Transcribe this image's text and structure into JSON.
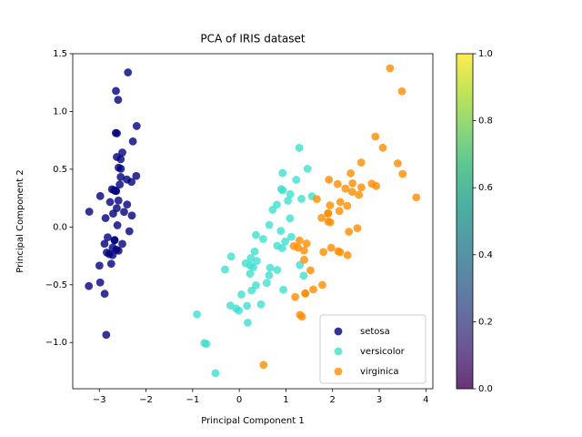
{
  "chart_data": {
    "type": "scatter",
    "title": "PCA of IRIS dataset",
    "x_label": "Principal Component 1",
    "y_label": "Principal Component 2",
    "xlim": [
      -3.57,
      4.15
    ],
    "ylim": [
      -1.4,
      1.5
    ],
    "xticks": [
      {
        "value": -3,
        "label": "−3"
      },
      {
        "value": -2,
        "label": "−2"
      },
      {
        "value": -1,
        "label": "−1"
      },
      0,
      1,
      2,
      3,
      4
    ],
    "yticks": [
      {
        "value": -1.0,
        "label": "−1.0"
      },
      {
        "value": -0.5,
        "label": "−0.5"
      },
      {
        "value": 0.0,
        "label": "0.0"
      },
      {
        "value": 0.5,
        "label": "0.5"
      },
      {
        "value": 1.0,
        "label": "1.0"
      },
      {
        "value": 1.5,
        "label": "1.5"
      }
    ],
    "legend": "lower right",
    "series": [
      {
        "name": "setosa",
        "color": "#000080",
        "x": [
          -2.684,
          -2.714,
          -2.889,
          -2.745,
          -2.729,
          -2.281,
          -2.821,
          -2.626,
          -2.886,
          -2.673,
          -2.507,
          -2.613,
          -2.787,
          -3.225,
          -2.644,
          -2.386,
          -2.623,
          -2.648,
          -2.199,
          -2.587,
          -2.31,
          -2.543,
          -3.216,
          -2.303,
          -2.356,
          -2.507,
          -2.469,
          -2.562,
          -2.64,
          -2.633,
          -2.587,
          -2.41,
          -2.648,
          -2.597,
          -2.673,
          -2.867,
          -2.625,
          -2.982,
          -2.59,
          -2.77,
          -2.852,
          -2.998,
          -2.405,
          -2.209,
          -2.715,
          -2.538,
          -2.84,
          -2.542,
          -2.704,
          -2.981
        ],
        "values": [
          0.319,
          -0.177,
          -0.145,
          -0.318,
          0.327,
          0.741,
          -0.089,
          0.163,
          -0.578,
          -0.114,
          0.645,
          0.015,
          -0.235,
          -0.511,
          1.178,
          1.338,
          0.811,
          0.312,
          0.874,
          0.514,
          0.391,
          0.433,
          0.133,
          0.099,
          -0.037,
          -0.146,
          0.131,
          0.368,
          0.312,
          -0.196,
          -0.205,
          0.411,
          0.814,
          1.101,
          -0.114,
          0.077,
          0.606,
          -0.48,
          0.229,
          0.216,
          -0.933,
          -0.334,
          0.195,
          0.442,
          -0.243,
          0.504,
          -0.221,
          0.587,
          0.116,
          0.268
        ]
      },
      {
        "name": "versicolor",
        "color": "#40e0d0",
        "x": [
          1.285,
          0.932,
          1.464,
          0.181,
          1.087,
          0.64,
          1.095,
          -0.749,
          1.043,
          -0.01,
          -0.511,
          0.511,
          0.263,
          0.984,
          -0.174,
          0.928,
          0.66,
          0.236,
          0.944,
          0.045,
          1.116,
          0.358,
          1.298,
          0.921,
          0.715,
          0.9,
          1.333,
          1.557,
          0.813,
          -0.306,
          -0.068,
          -0.19,
          0.136,
          1.38,
          0.588,
          0.807,
          1.22,
          0.815,
          0.246,
          0.166,
          0.464,
          0.89,
          0.23,
          -0.705,
          0.357,
          0.332,
          0.376,
          0.642,
          -0.907,
          0.299
        ],
        "values": [
          0.685,
          0.318,
          0.504,
          -0.828,
          0.075,
          -0.418,
          0.284,
          -1.004,
          0.228,
          -0.723,
          -1.265,
          -0.104,
          -0.55,
          -0.125,
          -0.255,
          0.467,
          -0.353,
          -0.333,
          -0.543,
          -0.584,
          -0.085,
          -0.069,
          -0.328,
          -0.183,
          0.149,
          0.329,
          0.244,
          0.267,
          -0.163,
          -0.368,
          -0.706,
          -0.68,
          -0.314,
          -0.421,
          -0.484,
          0.194,
          0.408,
          -0.372,
          -0.269,
          -0.682,
          -0.67,
          -0.034,
          -0.404,
          -1.012,
          -0.505,
          -0.212,
          -0.293,
          0.018,
          -0.756,
          -0.349
        ]
      },
      {
        "name": "virginica",
        "color": "#ff8c00",
        "x": [
          2.531,
          1.415,
          2.617,
          1.971,
          2.35,
          3.397,
          0.521,
          2.933,
          2.321,
          2.917,
          1.662,
          1.804,
          2.166,
          1.345,
          1.586,
          1.905,
          1.95,
          3.487,
          3.795,
          1.3,
          2.428,
          1.199,
          3.5,
          1.388,
          2.276,
          2.614,
          1.258,
          1.291,
          2.123,
          2.388,
          2.841,
          3.231,
          2.159,
          1.444,
          1.78,
          3.077,
          2.145,
          1.905,
          1.169,
          2.108,
          2.314,
          1.922,
          1.415,
          2.563,
          2.419,
          1.944,
          1.527,
          1.764,
          1.902,
          1.391
        ],
        "values": [
          -0.01,
          -0.575,
          0.343,
          -0.18,
          -0.041,
          0.551,
          -1.193,
          0.355,
          -0.244,
          0.783,
          0.242,
          -0.216,
          0.216,
          -0.776,
          -0.54,
          0.119,
          0.041,
          1.175,
          0.257,
          -0.761,
          0.378,
          -0.606,
          0.46,
          -0.204,
          0.333,
          0.558,
          -0.179,
          -0.117,
          -0.21,
          0.465,
          0.375,
          1.374,
          -0.218,
          -0.143,
          -0.501,
          0.686,
          0.139,
          0.048,
          -0.165,
          0.372,
          0.183,
          0.409,
          -0.575,
          0.278,
          0.305,
          0.188,
          -0.375,
          0.079,
          0.117,
          -0.283
        ]
      }
    ],
    "colorbar": {
      "colormap": "viridis",
      "ylim": [
        0,
        1
      ],
      "yticks": [
        {
          "value": 0,
          "label": "0.0"
        },
        {
          "value": 0.2,
          "label": "0.2"
        },
        {
          "value": 0.4,
          "label": "0.4"
        },
        {
          "value": 0.6,
          "label": "0.6"
        },
        {
          "value": 0.8,
          "label": "0.8"
        },
        {
          "value": 1,
          "label": "1.0"
        }
      ]
    }
  }
}
